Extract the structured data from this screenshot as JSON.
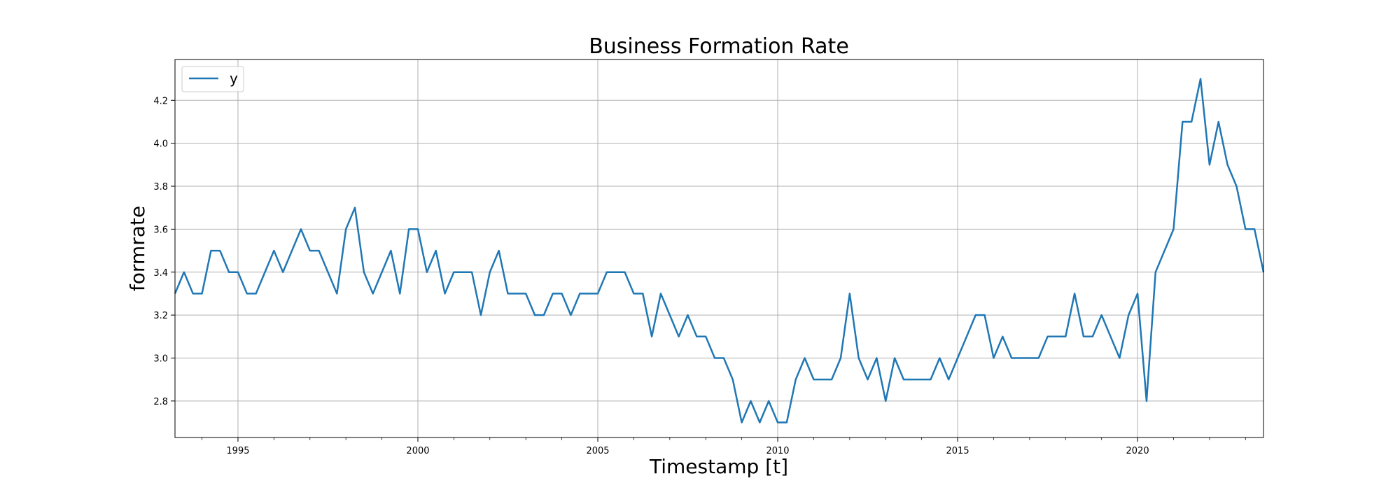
{
  "chart_data": {
    "type": "line",
    "title": "Business Formation Rate",
    "xlabel": "Timestamp [t]",
    "ylabel": "formrate",
    "xlim": [
      "1993-04",
      "2023-07"
    ],
    "ylim": [
      2.63,
      4.39
    ],
    "x_ticks": [
      "1995",
      "2000",
      "2005",
      "2010",
      "2015",
      "2020"
    ],
    "y_ticks": [
      "2.8",
      "3.0",
      "3.2",
      "3.4",
      "3.6",
      "3.8",
      "4.0",
      "4.2"
    ],
    "grid": true,
    "legend_position": "upper-left",
    "line_color": "#1f77b4",
    "series": [
      {
        "name": "y",
        "x": [
          "1993-04",
          "1993-07",
          "1993-10",
          "1994-01",
          "1994-04",
          "1994-07",
          "1994-10",
          "1995-01",
          "1995-04",
          "1995-07",
          "1995-10",
          "1996-01",
          "1996-04",
          "1996-07",
          "1996-10",
          "1997-01",
          "1997-04",
          "1997-07",
          "1997-10",
          "1998-01",
          "1998-04",
          "1998-07",
          "1998-10",
          "1999-01",
          "1999-04",
          "1999-07",
          "1999-10",
          "2000-01",
          "2000-04",
          "2000-07",
          "2000-10",
          "2001-01",
          "2001-04",
          "2001-07",
          "2001-10",
          "2002-01",
          "2002-04",
          "2002-07",
          "2002-10",
          "2003-01",
          "2003-04",
          "2003-07",
          "2003-10",
          "2004-01",
          "2004-04",
          "2004-07",
          "2004-10",
          "2005-01",
          "2005-04",
          "2005-07",
          "2005-10",
          "2006-01",
          "2006-04",
          "2006-07",
          "2006-10",
          "2007-01",
          "2007-04",
          "2007-07",
          "2007-10",
          "2008-01",
          "2008-04",
          "2008-07",
          "2008-10",
          "2009-01",
          "2009-04",
          "2009-07",
          "2009-10",
          "2010-01",
          "2010-04",
          "2010-07",
          "2010-10",
          "2011-01",
          "2011-04",
          "2011-07",
          "2011-10",
          "2012-01",
          "2012-04",
          "2012-07",
          "2012-10",
          "2013-01",
          "2013-04",
          "2013-07",
          "2013-10",
          "2014-01",
          "2014-04",
          "2014-07",
          "2014-10",
          "2015-01",
          "2015-04",
          "2015-07",
          "2015-10",
          "2016-01",
          "2016-04",
          "2016-07",
          "2016-10",
          "2017-01",
          "2017-04",
          "2017-07",
          "2017-10",
          "2018-01",
          "2018-04",
          "2018-07",
          "2018-10",
          "2019-01",
          "2019-04",
          "2019-07",
          "2019-10",
          "2020-01",
          "2020-04",
          "2020-07",
          "2020-10",
          "2021-01",
          "2021-04",
          "2021-07",
          "2021-10",
          "2022-01",
          "2022-04",
          "2022-07",
          "2022-10",
          "2023-01",
          "2023-04",
          "2023-07"
        ],
        "y": [
          3.3,
          3.4,
          3.3,
          3.3,
          3.5,
          3.5,
          3.4,
          3.4,
          3.3,
          3.3,
          3.4,
          3.5,
          3.4,
          3.5,
          3.6,
          3.5,
          3.5,
          3.4,
          3.3,
          3.6,
          3.7,
          3.4,
          3.3,
          3.4,
          3.5,
          3.3,
          3.6,
          3.6,
          3.4,
          3.5,
          3.3,
          3.4,
          3.4,
          3.4,
          3.2,
          3.4,
          3.5,
          3.3,
          3.3,
          3.3,
          3.2,
          3.2,
          3.3,
          3.3,
          3.2,
          3.3,
          3.3,
          3.3,
          3.4,
          3.4,
          3.4,
          3.3,
          3.3,
          3.1,
          3.3,
          3.2,
          3.1,
          3.2,
          3.1,
          3.1,
          3.0,
          3.0,
          2.9,
          2.7,
          2.8,
          2.7,
          2.8,
          2.7,
          2.7,
          2.9,
          3.0,
          2.9,
          2.9,
          2.9,
          3.0,
          3.3,
          3.0,
          2.9,
          3.0,
          2.8,
          3.0,
          2.9,
          2.9,
          2.9,
          2.9,
          3.0,
          2.9,
          3.0,
          3.1,
          3.2,
          3.2,
          3.0,
          3.1,
          3.0,
          3.0,
          3.0,
          3.0,
          3.1,
          3.1,
          3.1,
          3.3,
          3.1,
          3.1,
          3.2,
          3.1,
          3.0,
          3.2,
          3.3,
          2.8,
          3.4,
          3.5,
          3.6,
          4.1,
          4.1,
          4.3,
          3.9,
          4.1,
          3.9,
          3.8,
          3.6,
          3.6,
          3.4
        ]
      }
    ]
  }
}
